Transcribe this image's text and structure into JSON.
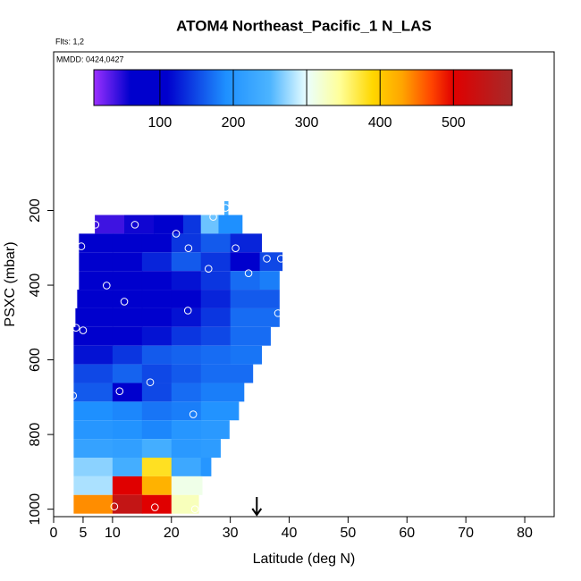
{
  "chart_data": {
    "type": "heatmap",
    "title": "ATOM4 Northeast_Pacific_1 N_LAS",
    "annotations": [
      "Flts: 1,2",
      "MMDD: 0424,0427"
    ],
    "x_label": "Latitude (deg N)",
    "y_label": "PSXC (mbar)",
    "xlim": [
      0,
      85
    ],
    "xticks": [
      0,
      5,
      10,
      20,
      30,
      40,
      50,
      60,
      70,
      80
    ],
    "ylim": [
      1020,
      -225
    ],
    "yticks": [
      200,
      400,
      600,
      800,
      1000
    ],
    "colorbar": {
      "lim": [
        10,
        580
      ],
      "ticks": [
        100,
        200,
        300,
        400,
        500
      ],
      "stops": [
        {
          "value": 10,
          "color": "#9b30ff"
        },
        {
          "value": 60,
          "color": "#0000cd"
        },
        {
          "value": 110,
          "color": "#0000cd"
        },
        {
          "value": 190,
          "color": "#1e90ff"
        },
        {
          "value": 250,
          "color": "#4cb4ff"
        },
        {
          "value": 300,
          "color": "#eaffff"
        },
        {
          "value": 345,
          "color": "#ffff99"
        },
        {
          "value": 390,
          "color": "#ffd700"
        },
        {
          "value": 430,
          "color": "#ffa500"
        },
        {
          "value": 470,
          "color": "#ff4500"
        },
        {
          "value": 500,
          "color": "#e00000"
        },
        {
          "value": 580,
          "color": "#a52a2a"
        }
      ]
    },
    "rows": [
      {
        "p": [
          175,
          212
        ],
        "lat": [
          29,
          29.6
        ],
        "values": [
          240
        ]
      },
      {
        "p": [
          212,
          262
        ],
        "lat": [
          7,
          12,
          17,
          22,
          25,
          28,
          32
        ],
        "values": [
          40,
          55,
          95,
          140,
          260,
          190
        ]
      },
      {
        "p": [
          262,
          312
        ],
        "lat": [
          4.3,
          10,
          15,
          20,
          25,
          30,
          35.3
        ],
        "values": [
          90,
          100,
          110,
          140,
          160,
          130
        ]
      },
      {
        "p": [
          312,
          362
        ],
        "lat": [
          4.3,
          10,
          15,
          20,
          25,
          30,
          35,
          38.8
        ],
        "values": [
          95,
          105,
          130,
          160,
          140,
          100,
          150
        ]
      },
      {
        "p": [
          362,
          412
        ],
        "lat": [
          4.3,
          10,
          15,
          20,
          25,
          30,
          35,
          38.3
        ],
        "values": [
          100,
          95,
          110,
          120,
          140,
          170,
          180
        ]
      },
      {
        "p": [
          412,
          462
        ],
        "lat": [
          4,
          10,
          15,
          20,
          25,
          30,
          38.3
        ],
        "values": [
          100,
          80,
          100,
          110,
          130,
          160
        ]
      },
      {
        "p": [
          462,
          512
        ],
        "lat": [
          3.7,
          10,
          15,
          20,
          25,
          30,
          38.3
        ],
        "values": [
          95,
          100,
          105,
          120,
          140,
          170
        ]
      },
      {
        "p": [
          512,
          562
        ],
        "lat": [
          3.4,
          10,
          15,
          20,
          25,
          30,
          36.8
        ],
        "values": [
          95,
          105,
          120,
          140,
          150,
          170
        ]
      },
      {
        "p": [
          562,
          612
        ],
        "lat": [
          3.4,
          10,
          15,
          20,
          25,
          30,
          35.3
        ],
        "values": [
          120,
          140,
          160,
          165,
          170,
          175
        ]
      },
      {
        "p": [
          612,
          662
        ],
        "lat": [
          3.4,
          10,
          15,
          20,
          25,
          33.8
        ],
        "values": [
          150,
          165,
          150,
          160,
          170
        ]
      },
      {
        "p": [
          662,
          712
        ],
        "lat": [
          3.4,
          10,
          15,
          20,
          25,
          32.3
        ],
        "values": [
          160,
          80,
          150,
          170,
          180
        ]
      },
      {
        "p": [
          712,
          762
        ],
        "lat": [
          3.4,
          10,
          15,
          20,
          25,
          31.4
        ],
        "values": [
          190,
          185,
          175,
          180,
          195
        ]
      },
      {
        "p": [
          762,
          812
        ],
        "lat": [
          3.4,
          10,
          15,
          20,
          25,
          29.8
        ],
        "values": [
          200,
          195,
          185,
          200,
          205
        ]
      },
      {
        "p": [
          812,
          862
        ],
        "lat": [
          3.4,
          10,
          15,
          20,
          25,
          28.3
        ],
        "values": [
          220,
          215,
          240,
          205,
          210
        ]
      },
      {
        "p": [
          862,
          912
        ],
        "lat": [
          3.4,
          10,
          15,
          20,
          25,
          26.7
        ],
        "values": [
          270,
          240,
          380,
          230,
          200
        ]
      },
      {
        "p": [
          912,
          962
        ],
        "lat": [
          3.4,
          10,
          15,
          20,
          25.2
        ],
        "values": [
          280,
          500,
          420,
          310
        ]
      },
      {
        "p": [
          962,
          1012
        ],
        "lat": [
          3.4,
          10,
          15,
          20,
          24.6
        ],
        "values": [
          440,
          540,
          500,
          330
        ]
      }
    ],
    "points": {
      "x": [
        7.1,
        13.8,
        20.8,
        27.1,
        29.2,
        4.7,
        22.9,
        30.9,
        36.2,
        38.6,
        26.3,
        33.1,
        9,
        12,
        22.8,
        38.1,
        3.8,
        5,
        16.4,
        11.2,
        3.3,
        23.7,
        10.3,
        17.2,
        24
      ],
      "y": [
        238,
        238,
        262,
        217,
        193,
        296,
        301,
        301,
        329,
        329,
        356,
        368,
        401,
        444,
        468,
        475,
        514,
        521,
        660,
        684,
        696,
        746,
        993,
        995,
        1000
      ]
    },
    "arrow": {
      "x": 34.5
    }
  }
}
